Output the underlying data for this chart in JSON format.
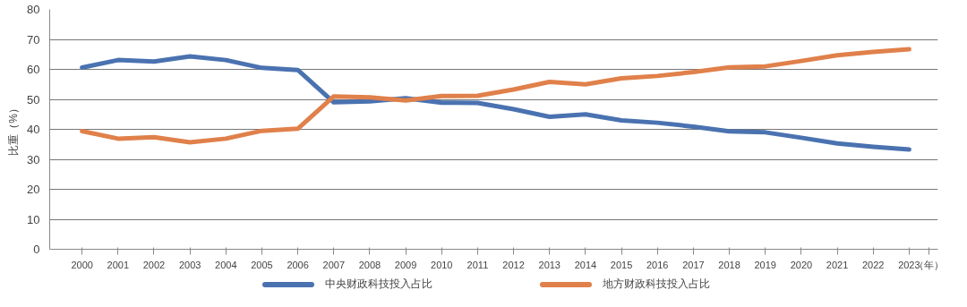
{
  "chart_data": {
    "type": "line",
    "ylabel": "比重（%）",
    "xlabel": "（年）",
    "categories": [
      "2000",
      "2001",
      "2002",
      "2003",
      "2004",
      "2005",
      "2006",
      "2007",
      "2008",
      "2009",
      "2010",
      "2011",
      "2012",
      "2013",
      "2014",
      "2015",
      "2016",
      "2017",
      "2018",
      "2019",
      "2020",
      "2021",
      "2022",
      "2023"
    ],
    "series": [
      {
        "name": "中央财政科技投入占比",
        "color": "#4a72b0",
        "values": [
          60.6,
          63.1,
          62.6,
          64.3,
          63.1,
          60.5,
          59.8,
          49.0,
          49.3,
          50.4,
          48.9,
          48.8,
          46.7,
          44.2,
          45.0,
          43.0,
          42.2,
          40.9,
          39.3,
          39.0,
          37.2,
          35.3,
          34.2,
          33.3
        ]
      },
      {
        "name": "地方财政科技投入占比",
        "color": "#e0804a",
        "values": [
          39.4,
          36.9,
          37.4,
          35.7,
          36.9,
          39.5,
          40.2,
          51.0,
          50.7,
          49.6,
          51.1,
          51.2,
          53.3,
          55.8,
          55.0,
          57.0,
          57.8,
          59.1,
          60.7,
          61.0,
          62.8,
          64.7,
          65.8,
          66.7
        ]
      }
    ],
    "ylim": [
      0,
      80
    ],
    "yticks": [
      0,
      10,
      20,
      30,
      40,
      50,
      60,
      70,
      80
    ],
    "grid": "y",
    "legend": "bottom",
    "marker": "none",
    "line_style": "solid"
  }
}
